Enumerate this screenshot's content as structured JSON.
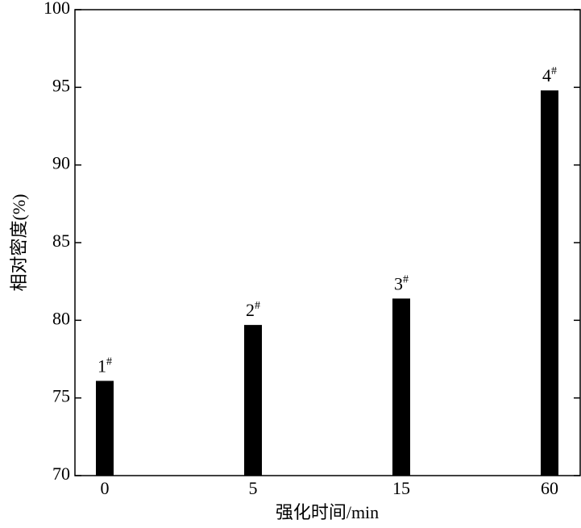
{
  "chart_data": {
    "type": "bar",
    "x_label": "强化时间/min",
    "y_label": "相对密度(%)",
    "categories": [
      "0",
      "5",
      "15",
      "60"
    ],
    "values": [
      76.1,
      79.7,
      81.4,
      94.8
    ],
    "annotations": [
      "1#",
      "2#",
      "3#",
      "4#"
    ],
    "color": "#000000",
    "ylim": [
      70,
      100
    ],
    "yticks": [
      70,
      75,
      80,
      85,
      90,
      95,
      100
    ]
  }
}
